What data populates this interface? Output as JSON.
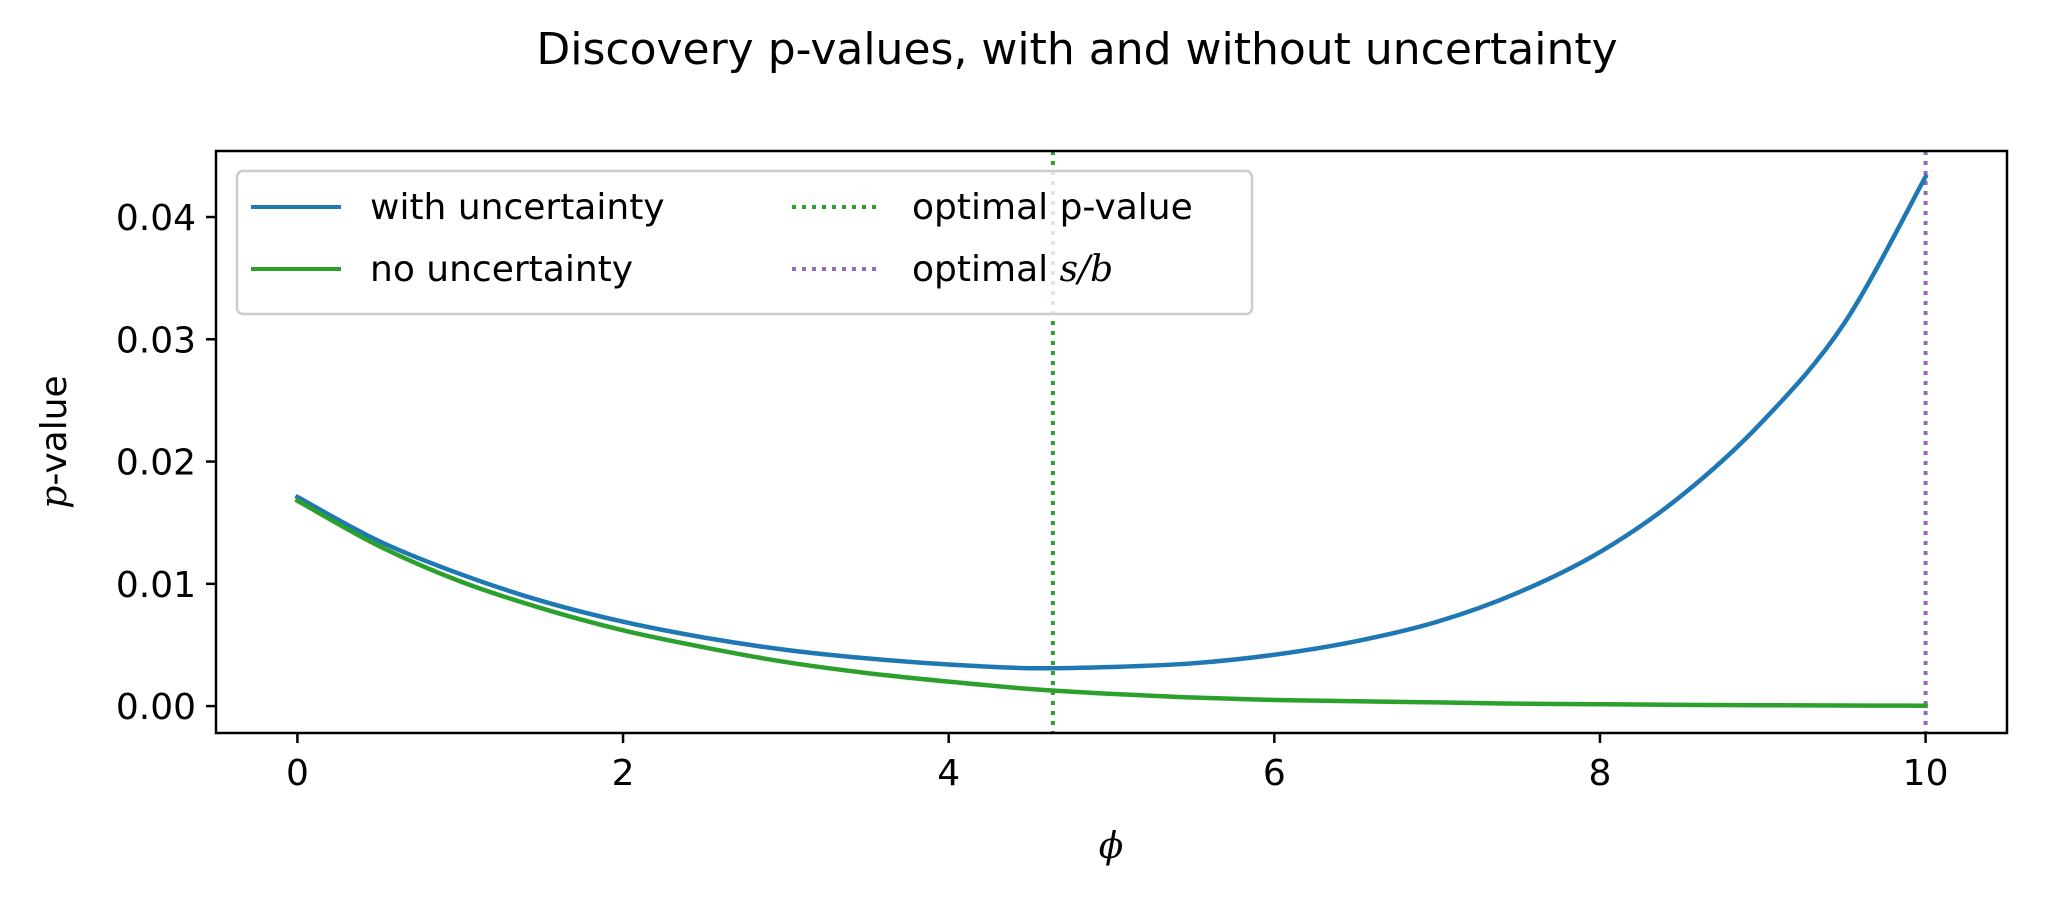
{
  "chart_data": {
    "type": "line",
    "title": "Discovery p-values, with and without uncertainty",
    "xlabel": "ϕ",
    "ylabel_italic": "p",
    "ylabel_rest": "-value",
    "xlim": [
      -0.5,
      10.5
    ],
    "ylim": [
      -0.0022,
      0.0454
    ],
    "x_ticks": [
      0,
      2,
      4,
      6,
      8,
      10
    ],
    "x_tick_labels": [
      "0",
      "2",
      "4",
      "6",
      "8",
      "10"
    ],
    "y_ticks": [
      0.0,
      0.01,
      0.02,
      0.03,
      0.04
    ],
    "y_tick_labels": [
      "0.00",
      "0.01",
      "0.02",
      "0.03",
      "0.04"
    ],
    "grid": false,
    "legend_position": "upper-left",
    "series": [
      {
        "name": "with uncertainty",
        "color": "#1f77b4",
        "style": "solid",
        "x": [
          0,
          0.5,
          1,
          1.5,
          2,
          2.5,
          3,
          3.5,
          4,
          4.5,
          5,
          5.5,
          6,
          6.5,
          7,
          7.5,
          8,
          8.5,
          9,
          9.5,
          10
        ],
        "y": [
          0.0171,
          0.0135,
          0.0108,
          0.0086,
          0.0069,
          0.0056,
          0.0046,
          0.0039,
          0.0034,
          0.0031,
          0.0032,
          0.0035,
          0.0042,
          0.0053,
          0.0069,
          0.0093,
          0.0126,
          0.0172,
          0.0233,
          0.0313,
          0.0433
        ]
      },
      {
        "name": "no uncertainty",
        "color": "#2ca02c",
        "style": "solid",
        "x": [
          0,
          0.5,
          1,
          1.5,
          2,
          2.5,
          3,
          3.5,
          4,
          4.5,
          5,
          5.5,
          6,
          6.5,
          7,
          7.5,
          8,
          8.5,
          9,
          9.5,
          10
        ],
        "y": [
          0.0168,
          0.0131,
          0.0102,
          0.008,
          0.0062,
          0.0048,
          0.0036,
          0.0027,
          0.002,
          0.0014,
          0.001,
          0.0007,
          0.0005,
          0.0004,
          0.0003,
          0.0002,
          0.00015,
          0.0001,
          7e-05,
          5e-05,
          3e-05
        ]
      }
    ],
    "vlines": [
      {
        "name": "optimal p-value",
        "x": 4.64,
        "color": "#2ca02c",
        "style": "dotted"
      },
      {
        "name_plain": "optimal ",
        "name_italic": "s/b",
        "x": 10.0,
        "color": "#9467bd",
        "style": "dotted"
      }
    ]
  }
}
